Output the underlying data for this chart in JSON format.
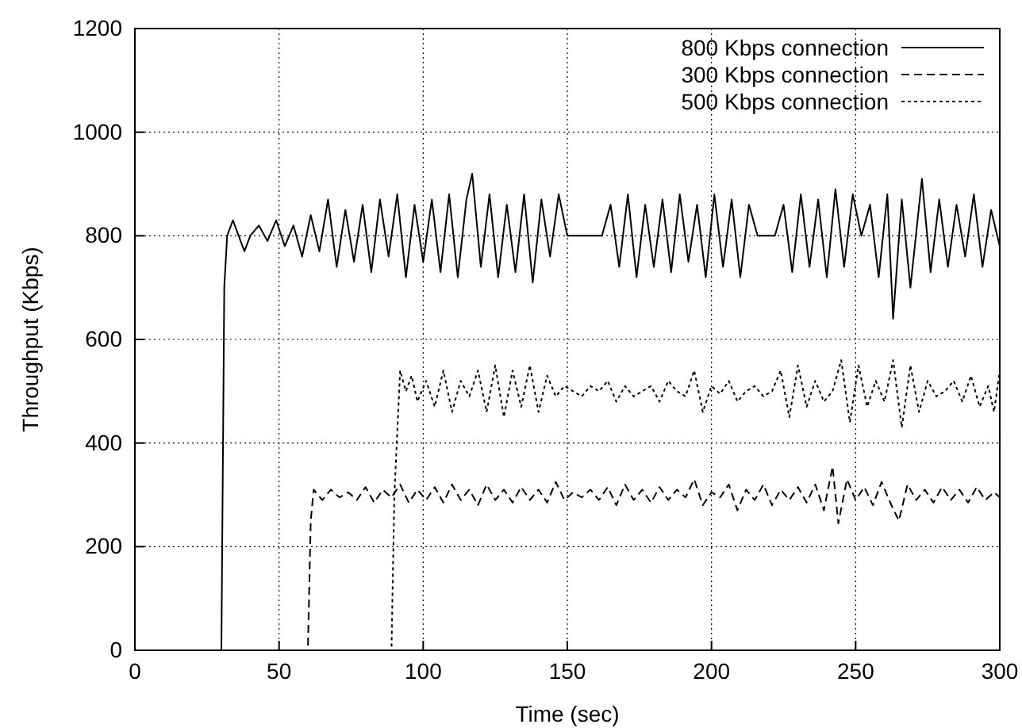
{
  "chart_data": {
    "type": "line",
    "xlabel": "Time (sec)",
    "ylabel": "Throughput (Kbps)",
    "xlim": [
      0,
      300
    ],
    "ylim": [
      0,
      1200
    ],
    "xticks": [
      0,
      50,
      100,
      150,
      200,
      250,
      300
    ],
    "yticks": [
      0,
      200,
      400,
      600,
      800,
      1000,
      1200
    ],
    "grid": true,
    "legend": "top right",
    "marker": "none",
    "series": [
      {
        "name": "800 Kbps connection",
        "color": "#000000",
        "line_style": "solid",
        "x": [
          0,
          30,
          31,
          32,
          34,
          36,
          38,
          40,
          43,
          46,
          49,
          52,
          55,
          58,
          61,
          64,
          67,
          70,
          73,
          76,
          79,
          82,
          85,
          88,
          91,
          94,
          97,
          100,
          103,
          106,
          109,
          112,
          115,
          117,
          120,
          123,
          126,
          129,
          132,
          135,
          138,
          141,
          144,
          147,
          150,
          153,
          156,
          159,
          162,
          165,
          168,
          171,
          174,
          177,
          180,
          183,
          186,
          189,
          192,
          195,
          198,
          201,
          204,
          207,
          210,
          213,
          216,
          219,
          222,
          225,
          228,
          231,
          234,
          237,
          240,
          243,
          246,
          249,
          252,
          255,
          258,
          261,
          263,
          266,
          269,
          273,
          276,
          279,
          282,
          285,
          288,
          291,
          294,
          297,
          300
        ],
        "values": [
          0,
          0,
          700,
          800,
          830,
          800,
          770,
          800,
          820,
          790,
          830,
          780,
          820,
          760,
          840,
          770,
          870,
          740,
          850,
          750,
          860,
          730,
          870,
          760,
          880,
          720,
          860,
          750,
          870,
          730,
          880,
          720,
          870,
          920,
          740,
          880,
          720,
          860,
          730,
          880,
          710,
          870,
          760,
          880,
          800,
          800,
          800,
          800,
          800,
          860,
          740,
          880,
          720,
          860,
          740,
          870,
          730,
          880,
          750,
          860,
          720,
          880,
          740,
          870,
          720,
          860,
          800,
          800,
          800,
          860,
          730,
          880,
          740,
          870,
          720,
          890,
          740,
          880,
          800,
          860,
          720,
          880,
          640,
          870,
          700,
          910,
          730,
          870,
          740,
          860,
          760,
          880,
          740,
          850,
          780
        ]
      },
      {
        "name": "300 Kbps connection",
        "color": "#000000",
        "line_style": "dashed",
        "x": [
          0,
          60,
          61,
          62,
          65,
          68,
          71,
          74,
          77,
          80,
          83,
          86,
          89,
          92,
          95,
          98,
          101,
          104,
          107,
          110,
          113,
          116,
          119,
          122,
          125,
          128,
          131,
          134,
          137,
          140,
          143,
          146,
          149,
          152,
          155,
          158,
          161,
          164,
          167,
          170,
          173,
          176,
          179,
          182,
          185,
          188,
          191,
          194,
          197,
          200,
          203,
          206,
          209,
          212,
          215,
          218,
          221,
          224,
          227,
          230,
          233,
          236,
          239,
          242,
          244,
          247,
          250,
          253,
          256,
          259,
          262,
          265,
          268,
          271,
          274,
          277,
          280,
          283,
          286,
          289,
          292,
          295,
          298,
          300
        ],
        "values": [
          0,
          0,
          250,
          310,
          290,
          310,
          295,
          305,
          290,
          315,
          285,
          310,
          295,
          320,
          285,
          310,
          290,
          315,
          285,
          320,
          290,
          310,
          280,
          320,
          290,
          310,
          285,
          315,
          290,
          310,
          285,
          325,
          290,
          305,
          295,
          310,
          290,
          315,
          280,
          320,
          290,
          310,
          285,
          315,
          290,
          310,
          295,
          330,
          280,
          305,
          295,
          320,
          270,
          310,
          290,
          320,
          280,
          310,
          290,
          315,
          285,
          320,
          270,
          355,
          245,
          330,
          290,
          315,
          280,
          325,
          285,
          250,
          320,
          290,
          310,
          285,
          315,
          290,
          310,
          285,
          315,
          290,
          305,
          295
        ]
      },
      {
        "name": "500 Kbps connection",
        "color": "#000000",
        "line_style": "dotted",
        "x": [
          0,
          89,
          90,
          92,
          94,
          96,
          98,
          101,
          104,
          107,
          110,
          113,
          116,
          119,
          122,
          125,
          128,
          131,
          134,
          137,
          140,
          143,
          146,
          149,
          152,
          155,
          158,
          161,
          164,
          167,
          170,
          173,
          176,
          179,
          182,
          185,
          188,
          191,
          194,
          197,
          200,
          203,
          206,
          209,
          212,
          215,
          218,
          221,
          224,
          227,
          230,
          233,
          236,
          239,
          242,
          245,
          248,
          251,
          254,
          257,
          260,
          263,
          266,
          269,
          272,
          275,
          278,
          281,
          284,
          287,
          290,
          293,
          296,
          298,
          300
        ],
        "values": [
          0,
          0,
          300,
          540,
          500,
          530,
          480,
          520,
          470,
          540,
          460,
          520,
          490,
          540,
          460,
          550,
          450,
          540,
          470,
          550,
          460,
          530,
          490,
          510,
          500,
          490,
          510,
          500,
          520,
          480,
          510,
          490,
          500,
          510,
          480,
          520,
          500,
          490,
          540,
          460,
          510,
          495,
          520,
          480,
          500,
          510,
          490,
          500,
          540,
          450,
          550,
          470,
          520,
          480,
          500,
          560,
          440,
          550,
          470,
          520,
          480,
          560,
          430,
          550,
          460,
          520,
          490,
          500,
          520,
          480,
          530,
          470,
          510,
          460,
          540
        ]
      }
    ]
  }
}
